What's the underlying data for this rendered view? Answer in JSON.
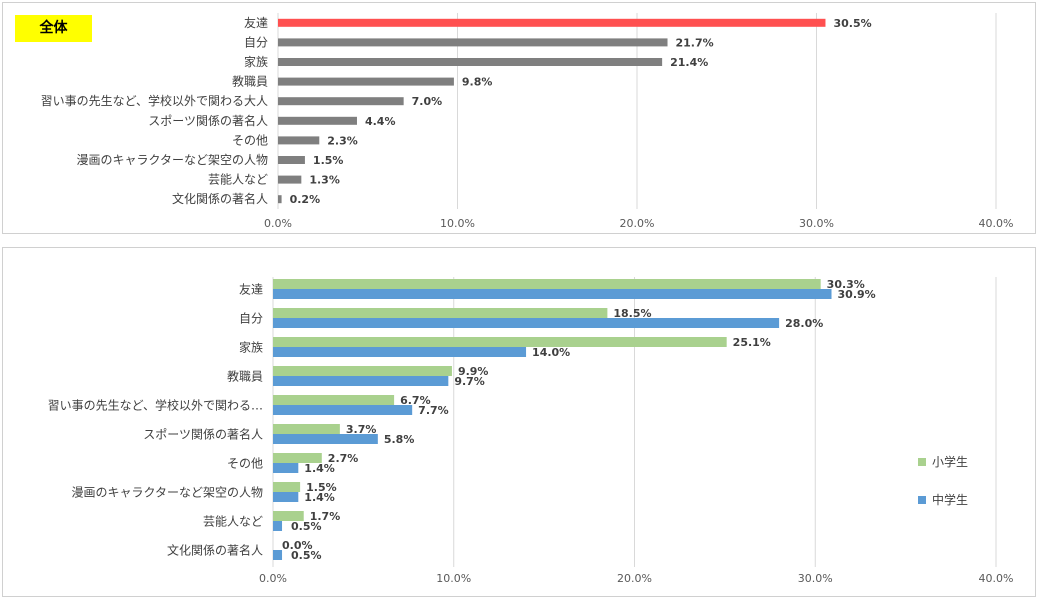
{
  "chart_data": [
    {
      "type": "bar",
      "orientation": "horizontal",
      "title": "全体",
      "categories": [
        "友達",
        "自分",
        "家族",
        "教職員",
        "習い事の先生など、学校以外で関わる大人",
        "スポーツ関係の著名人",
        "その他",
        "漫画のキャラクターなど架空の人物",
        "芸能人など",
        "文化関係の著名人"
      ],
      "series": [
        {
          "values": [
            30.5,
            21.7,
            21.4,
            9.8,
            7.0,
            4.4,
            2.3,
            1.5,
            1.3,
            0.2
          ]
        }
      ],
      "highlight_index": 0,
      "colors": {
        "highlight": "#ff5050",
        "default": "#7f7f7f"
      },
      "xlim": [
        0,
        40
      ],
      "xticks": [
        "0.0%",
        "10.0%",
        "20.0%",
        "30.0%",
        "40.0%"
      ],
      "grid": true
    },
    {
      "type": "bar",
      "orientation": "horizontal",
      "categories": [
        "友達",
        "自分",
        "家族",
        "教職員",
        "習い事の先生など、学校以外で関わる…",
        "スポーツ関係の著名人",
        "その他",
        "漫画のキャラクターなど架空の人物",
        "芸能人など",
        "文化関係の著名人"
      ],
      "series": [
        {
          "name": "小学生",
          "color": "#a9d18e",
          "values": [
            30.3,
            18.5,
            25.1,
            9.9,
            6.7,
            3.7,
            2.7,
            1.5,
            1.7,
            0.0
          ]
        },
        {
          "name": "中学生",
          "color": "#5b9bd5",
          "values": [
            30.9,
            28.0,
            14.0,
            9.7,
            7.7,
            5.8,
            1.4,
            1.4,
            0.5,
            0.5
          ]
        }
      ],
      "xlim": [
        0,
        40
      ],
      "xticks": [
        "0.0%",
        "10.0%",
        "20.0%",
        "30.0%",
        "40.0%"
      ],
      "legend_position": "right",
      "grid": true
    }
  ]
}
